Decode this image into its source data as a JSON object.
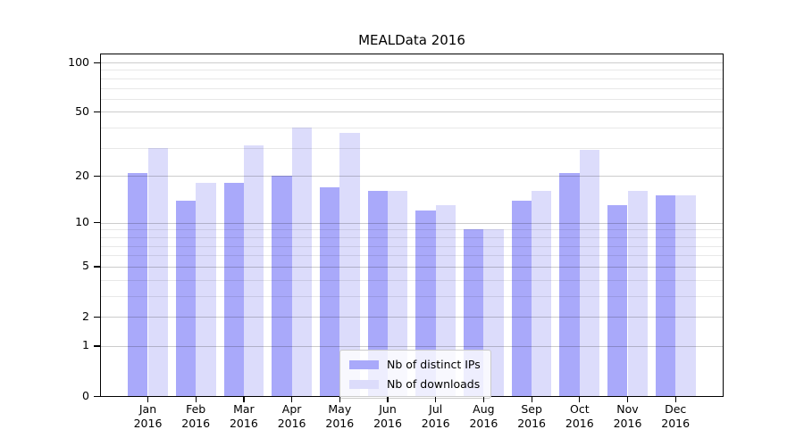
{
  "title": "MEALData 2016",
  "chart_data": {
    "type": "bar",
    "title": "MEALData 2016",
    "xlabel": "",
    "ylabel": "",
    "scale": "log(1+y) (symlog-like, 0 shown at baseline)",
    "grid": "horizontal, major + minor, drawn above bars",
    "legend_position": "inside axes, lower center-left",
    "categories": [
      "Jan",
      "Feb",
      "Mar",
      "Apr",
      "May",
      "Jun",
      "Jul",
      "Aug",
      "Sep",
      "Oct",
      "Nov",
      "Dec"
    ],
    "category_year": "2016",
    "yticks_major": [
      0,
      1,
      2,
      5,
      10,
      20,
      50,
      100
    ],
    "yticks_minor": [
      3,
      4,
      6,
      7,
      8,
      9,
      30,
      40,
      60,
      70,
      80,
      90
    ],
    "ylim": [
      0,
      120
    ],
    "series": [
      {
        "name": "Nb of distinct IPs",
        "color": "#a9a9fa",
        "values": [
          21,
          14,
          18,
          20,
          17,
          16,
          12,
          9,
          14,
          21,
          13,
          15
        ]
      },
      {
        "name": "Nb of downloads",
        "color": "#dcdcfb",
        "values": [
          30,
          18,
          31,
          40,
          37,
          16,
          13,
          9,
          16,
          29,
          16,
          15
        ]
      }
    ]
  },
  "colors": {
    "background": "#ffffff",
    "axes_border": "#000000",
    "major_grid": "#cccccc",
    "minor_grid": "#e9e9e9",
    "text": "#000000"
  }
}
